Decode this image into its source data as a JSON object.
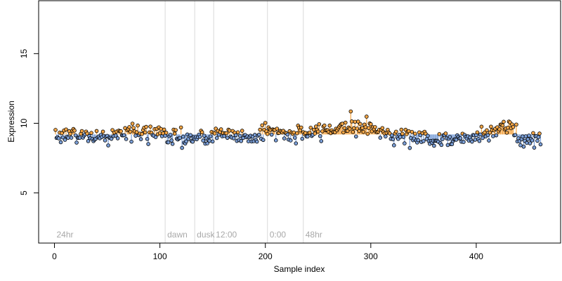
{
  "chart_data": {
    "type": "scatter",
    "xlabel": "Sample index",
    "ylabel": "Expression",
    "xlim": [
      -15,
      480
    ],
    "ylim": [
      1.4,
      18.8
    ],
    "x_ticks": [
      0,
      100,
      200,
      300,
      400
    ],
    "y_ticks": [
      5,
      10,
      15
    ],
    "baseline": 9.2,
    "grid": false,
    "legend": "none",
    "colors": {
      "point_outline": "#000000",
      "point_above": "#f5a646",
      "point_below": "#7b9fd8",
      "segment_line": "#d9d9d9",
      "segment_label": "#a8a8a8"
    },
    "segments": [
      {
        "label": "24hr",
        "start": 0
      },
      {
        "label": "dawn",
        "start": 105
      },
      {
        "label": "dusk",
        "start": 133
      },
      {
        "label": "12:00",
        "start": 151
      },
      {
        "label": "0:00",
        "start": 202
      },
      {
        "label": "48hr",
        "start": 236
      }
    ],
    "n_points": 461,
    "y_profile": [
      [
        0,
        9.25
      ],
      [
        30,
        9.1
      ],
      [
        45,
        8.95
      ],
      [
        60,
        9.2
      ],
      [
        70,
        9.45
      ],
      [
        90,
        9.15
      ],
      [
        102,
        9.5
      ],
      [
        108,
        9.0
      ],
      [
        140,
        8.85
      ],
      [
        150,
        9.0
      ],
      [
        155,
        9.45
      ],
      [
        165,
        9.15
      ],
      [
        190,
        9.0
      ],
      [
        205,
        9.65
      ],
      [
        215,
        9.15
      ],
      [
        240,
        9.25
      ],
      [
        260,
        9.55
      ],
      [
        282,
        9.9
      ],
      [
        300,
        9.65
      ],
      [
        315,
        9.25
      ],
      [
        340,
        9.05
      ],
      [
        370,
        8.75
      ],
      [
        385,
        8.9
      ],
      [
        400,
        9.1
      ],
      [
        420,
        9.6
      ],
      [
        432,
        9.7
      ],
      [
        440,
        8.9
      ],
      [
        461,
        8.9
      ]
    ],
    "noise_sd": 0.3
  }
}
